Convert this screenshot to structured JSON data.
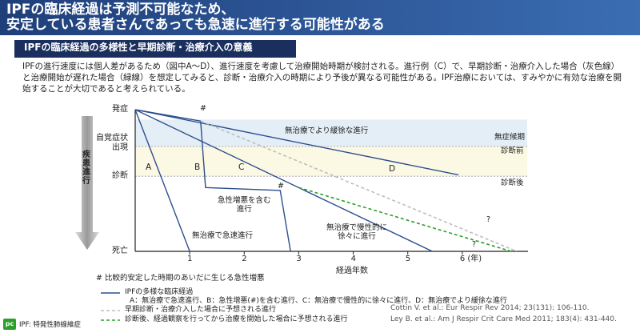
{
  "header": {
    "title": [
      "IPFの臨床経過は予測不可能なため、",
      "安定している患者さんであっても急速に進行する可能性がある"
    ]
  },
  "section": {
    "title": "IPFの臨床経過の多様性と早期診断・治療介入の意義"
  },
  "body": {
    "text": "IPFの進行速度には個人差があるため（図中A～D）、進行速度を考慮して治療開始時期が検討される。進行例（C）で、早期診断・治療介入した場合（灰色線）と治療開始が遅れた場合（緑線）を想定してみると、診断・治療介入の時期により予後が異なる可能性がある。IPF治療においては、すみやかに有効な治療を開始することが大切であると考えられている。"
  },
  "chart_data": {
    "type": "line",
    "xlabel": "経過年数",
    "ylabel": "疾患進行",
    "xlim": [
      0,
      7
    ],
    "ylim": [
      0,
      100
    ],
    "xticks": [
      1,
      2,
      3,
      4,
      5,
      {
        "value": 6,
        "label": "6 (年)"
      }
    ],
    "yticks": [
      {
        "value": 100,
        "label": "発症"
      },
      {
        "value": 74,
        "label": "自覚症状\n出現"
      },
      {
        "value": 53,
        "label": "診断"
      },
      {
        "value": 0,
        "label": "死亡"
      }
    ],
    "phases": [
      {
        "label": "無症候期",
        "range": [
          74,
          93
        ],
        "color": "#e4eef6"
      },
      {
        "label": "診断前",
        "range": [
          53,
          74
        ],
        "color": "#fbf8e4"
      },
      {
        "label": "診断後",
        "range": [
          0,
          53
        ],
        "color": "#ffffff"
      }
    ],
    "series": [
      {
        "name": "A",
        "color": "#2e4f8f",
        "x": [
          0,
          1
        ],
        "values": [
          100,
          0
        ]
      },
      {
        "name": "B",
        "color": "#2e4f8f",
        "x": [
          0,
          1.2,
          1.29,
          2.66,
          2.85
        ],
        "values": [
          100,
          92,
          45,
          43,
          0
        ]
      },
      {
        "name": "C",
        "color": "#2e4f8f",
        "x": [
          0,
          5.45
        ],
        "values": [
          100,
          0
        ]
      },
      {
        "name": "D",
        "color": "#2e4f8f",
        "x": [
          0,
          5.93
        ],
        "values": [
          100,
          54
        ]
      },
      {
        "name": "早期診断・治療介入した場合に予想される進行",
        "color": "#bdbdbd",
        "dash": true,
        "x": [
          1.2,
          7
        ],
        "values": [
          92,
          0
        ]
      },
      {
        "name": "診断後、経過観察を行ってから治療を開始した場合に予想される進行",
        "color": "#2aa02a",
        "dash": true,
        "x": [
          3,
          6.9
        ],
        "values": [
          45,
          0
        ]
      }
    ],
    "annotations": [
      "#",
      "#",
      "無治療でより緩徐な進行",
      "急性増悪を含む\n進行",
      "無治療で慢性的に\n徐々に進行",
      "無治療で急速進行",
      "?",
      "?"
    ],
    "footnote": "# 比較的安定した時期のあいだに生じる急性増悪",
    "legend_main": {
      "label": "IPFの多様な臨床経過",
      "note": "A：無治療で急速進行、B：急性増悪(#)を含む進行、C：無治療で慢性的に徐々に進行、D：無治療でより緩徐な進行"
    }
  },
  "references": [
    "Cottin V. et al.: Eur Respir Rev 2014; 23(131): 106-110.",
    "Ley B. et al.: Am J Respir Crit Care Med 2011; 183(4): 431-440."
  ],
  "footer": {
    "logo": "pc",
    "note": "IPF: 特発性肺線維症"
  }
}
